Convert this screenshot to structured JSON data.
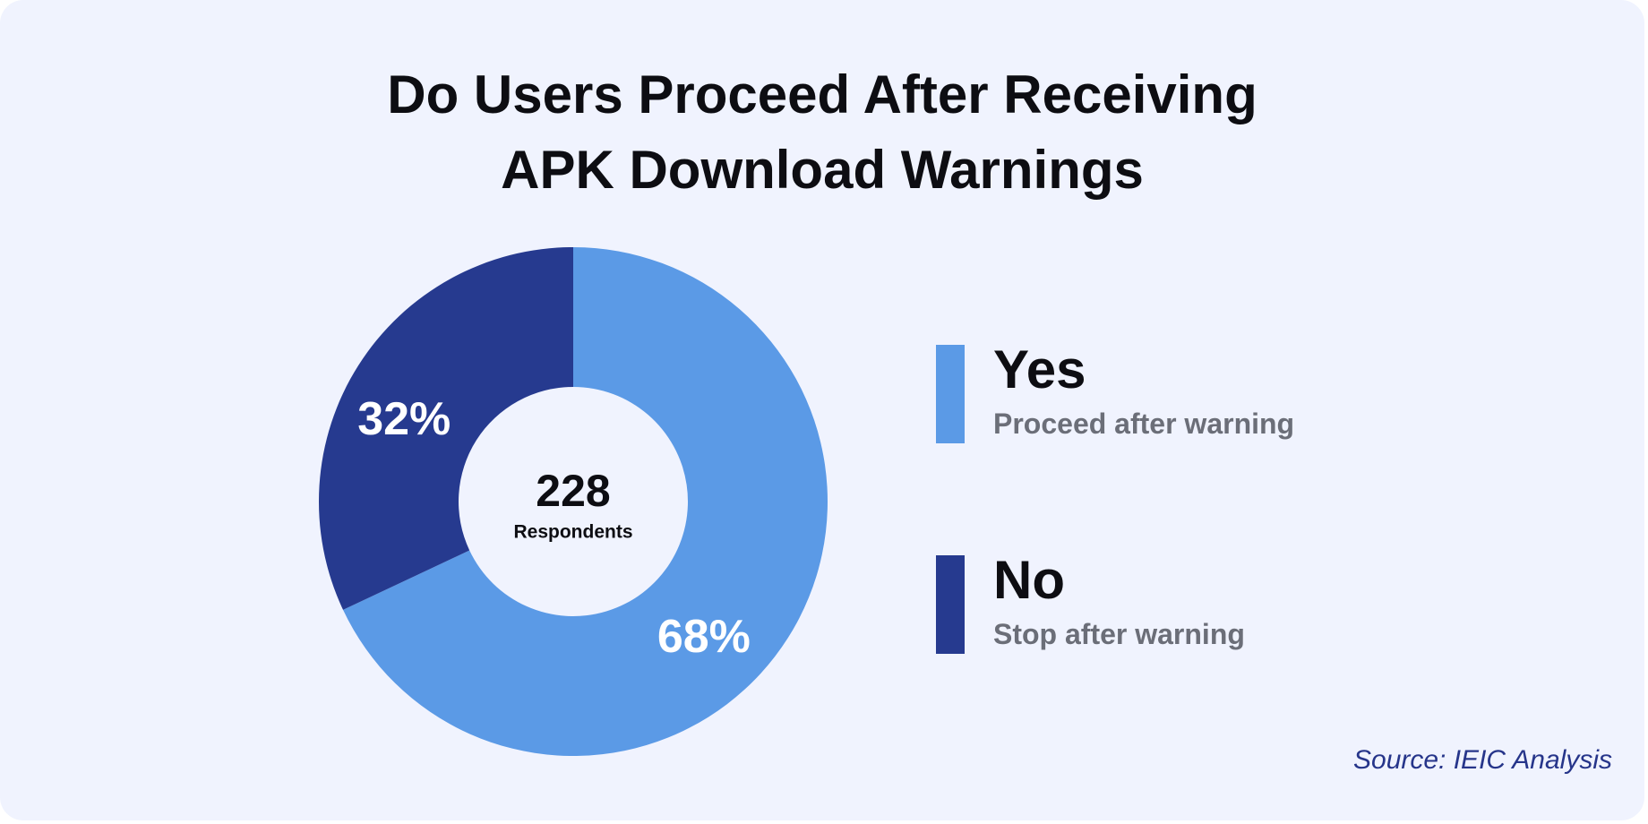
{
  "title_lines": [
    "Do Users Proceed After Receiving",
    "APK Download Warnings"
  ],
  "center": {
    "value": "228",
    "label": "Respondents"
  },
  "source": "Source: IEIC Analysis",
  "chart_data": {
    "type": "pie",
    "title": "Do Users Proceed After Receiving APK Download Warnings",
    "donut": true,
    "total": 228,
    "total_label": "Respondents",
    "legend_placement": "right",
    "series": [
      {
        "name": "Yes",
        "description": "Proceed after warning",
        "value": 68,
        "label": "68%",
        "color": "#5b9ae6"
      },
      {
        "name": "No",
        "description": "Stop after warning",
        "value": 32,
        "label": "32%",
        "color": "#263a8f"
      }
    ]
  },
  "colors": {
    "background": "#f0f3fe",
    "yes": "#5b9ae6",
    "no": "#263a8f",
    "source": "#26358a"
  }
}
